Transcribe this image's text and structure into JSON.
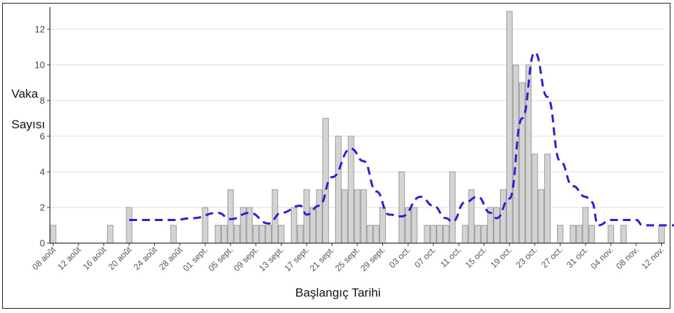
{
  "chart_data": {
    "type": "bar",
    "title": "",
    "xlabel": "Başlangıç Tarihi",
    "ylabel_line1": "Vaka",
    "ylabel_line2": "Sayısı",
    "ylim": [
      0,
      13
    ],
    "yticks": [
      0,
      2,
      4,
      6,
      8,
      10,
      12
    ],
    "grid": true,
    "start_label": "08 août",
    "tick_labels": [
      "08 août",
      "12 août",
      "16 août",
      "20 août",
      "24 août",
      "28 août",
      "01 sept.",
      "05 sept.",
      "09 sept.",
      "13 sept.",
      "17 sept.",
      "21 sept.",
      "25 sept.",
      "29 sept.",
      "03 oct.",
      "07 oct.",
      "11 oct.",
      "15 oct.",
      "19 oct.",
      "23 oct.",
      "27 oct.",
      "31 oct.",
      "04 nov.",
      "08 nov.",
      "12 nov."
    ],
    "series": [
      {
        "type": "bar",
        "color": "#d3d3d3",
        "values": [
          1,
          0,
          0,
          0,
          0,
          0,
          0,
          0,
          0,
          1,
          0,
          0,
          2,
          0,
          0,
          0,
          0,
          0,
          0,
          1,
          0,
          0,
          0,
          0,
          2,
          0,
          1,
          1,
          3,
          1,
          2,
          2,
          1,
          1,
          1,
          3,
          1,
          0,
          2,
          1,
          3,
          2,
          3,
          7,
          0,
          6,
          3,
          6,
          3,
          3,
          1,
          1,
          2,
          0,
          0,
          4,
          2,
          2,
          0,
          1,
          1,
          1,
          1,
          4,
          0,
          1,
          3,
          1,
          1,
          2,
          2,
          3,
          13,
          10,
          9,
          10,
          5,
          3,
          5,
          0,
          1,
          0,
          1,
          1,
          2,
          1,
          0,
          0,
          1,
          0,
          1,
          0,
          0,
          0,
          0,
          0,
          1
        ]
      },
      {
        "type": "line",
        "style": "dashed",
        "color": "#2b1fd6",
        "points": [
          [
            12,
            1.3
          ],
          [
            19,
            1.3
          ],
          [
            22,
            1.4
          ],
          [
            26,
            1.7
          ],
          [
            28,
            1.35
          ],
          [
            31,
            1.7
          ],
          [
            34,
            1.1
          ],
          [
            36,
            1.7
          ],
          [
            39,
            2.1
          ],
          [
            40,
            1.6
          ],
          [
            42,
            2.1
          ],
          [
            44,
            3.7
          ],
          [
            47,
            5.3
          ],
          [
            49,
            4.6
          ],
          [
            51,
            2.9
          ],
          [
            53,
            1.6
          ],
          [
            55,
            1.5
          ],
          [
            58,
            2.6
          ],
          [
            60,
            2.1
          ],
          [
            62,
            1.4
          ],
          [
            63,
            1.2
          ],
          [
            65,
            2.3
          ],
          [
            67,
            2.6
          ],
          [
            69,
            1.7
          ],
          [
            70,
            1.4
          ],
          [
            72,
            2.5
          ],
          [
            74,
            7.0
          ],
          [
            76,
            10.7
          ],
          [
            78,
            8.2
          ],
          [
            80,
            4.6
          ],
          [
            82,
            3.2
          ],
          [
            84,
            2.6
          ],
          [
            85,
            2.3
          ],
          [
            86,
            1.0
          ],
          [
            88,
            1.3
          ],
          [
            92,
            1.3
          ],
          [
            93,
            1.0
          ],
          [
            98,
            1.0
          ]
        ]
      }
    ]
  }
}
